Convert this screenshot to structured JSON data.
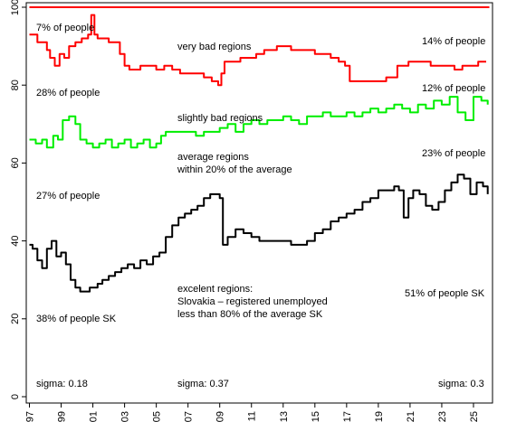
{
  "chart_data": {
    "type": "line",
    "title": "",
    "xlabel": "",
    "ylabel": "",
    "xlim": [
      1996.8,
      2026.2
    ],
    "ylim": [
      0,
      100
    ],
    "x_ticks": [
      {
        "value": 1997,
        "label": "97"
      },
      {
        "value": 1999,
        "label": "99"
      },
      {
        "value": 2001,
        "label": "01"
      },
      {
        "value": 2003,
        "label": "03"
      },
      {
        "value": 2005,
        "label": "05"
      },
      {
        "value": 2007,
        "label": "07"
      },
      {
        "value": 2009,
        "label": "09"
      },
      {
        "value": 2011,
        "label": "11"
      },
      {
        "value": 2013,
        "label": "13"
      },
      {
        "value": 2015,
        "label": "15"
      },
      {
        "value": 2017,
        "label": "17"
      },
      {
        "value": 2019,
        "label": "19"
      },
      {
        "value": 2021,
        "label": "21"
      },
      {
        "value": 2023,
        "label": "23"
      },
      {
        "value": 2025,
        "label": "25"
      }
    ],
    "y_ticks": [
      0,
      20,
      40,
      60,
      80,
      100
    ],
    "grid": false,
    "legend": "none",
    "series": [
      {
        "color": "#ff0000",
        "x": [
          1997,
          2026
        ],
        "y": [
          100,
          100
        ]
      },
      {
        "color": "#ff0000",
        "x": [
          1997,
          1997.5,
          1997.8,
          1998.1,
          1998.3,
          1998.6,
          1998.9,
          1999.2,
          1999.5,
          1999.9,
          2000.3,
          2000.7,
          2000.9,
          2001.1,
          2001.3,
          2001.7,
          2002.0,
          2002.4,
          2002.7,
          2003.0,
          2003.3,
          2003.7,
          2004.0,
          2004.5,
          2005.0,
          2005.5,
          2006.0,
          2006.5,
          2007.0,
          2007.5,
          2008.0,
          2008.5,
          2008.9,
          2009.1,
          2009.3,
          2009.8,
          2010.3,
          2010.8,
          2011.3,
          2011.8,
          2012.2,
          2012.6,
          2013.0,
          2013.5,
          2014.0,
          2014.5,
          2015.0,
          2015.5,
          2016.0,
          2016.5,
          2016.9,
          2017.2,
          2017.6,
          2018.2,
          2018.8,
          2019.5,
          2020.2,
          2020.6,
          2020.9,
          2021.3,
          2021.8,
          2022.3,
          2022.8,
          2023.3,
          2023.8,
          2024.3,
          2024.8,
          2025.3,
          2025.8
        ],
        "y": [
          93,
          91,
          91,
          89,
          87,
          85,
          88,
          87,
          90,
          91,
          92,
          93,
          98,
          93,
          92,
          92,
          91,
          91,
          88,
          85,
          84,
          84,
          85,
          85,
          84,
          85,
          84,
          83,
          83,
          83,
          82,
          81,
          80,
          83,
          86,
          86,
          87,
          87,
          88,
          89,
          89,
          90,
          90,
          89,
          89,
          89,
          88,
          88,
          87,
          86,
          85,
          81,
          81,
          81,
          81,
          82,
          85,
          85,
          86,
          86,
          86,
          85,
          85,
          85,
          84,
          85,
          85,
          86,
          86
        ]
      },
      {
        "color": "#00ee00",
        "x": [
          1997,
          1997.4,
          1997.8,
          1998.1,
          1998.5,
          1998.8,
          1999.1,
          1999.5,
          1999.9,
          2000.2,
          2000.6,
          2001.0,
          2001.4,
          2001.8,
          2002.2,
          2002.6,
          2003.0,
          2003.4,
          2003.8,
          2004.2,
          2004.6,
          2005.0,
          2005.3,
          2005.6,
          2006.0,
          2006.5,
          2007.0,
          2007.5,
          2008.0,
          2008.5,
          2009.0,
          2009.5,
          2010.0,
          2010.5,
          2011.0,
          2011.5,
          2012.0,
          2012.5,
          2013.0,
          2013.5,
          2014.0,
          2014.5,
          2015.0,
          2015.5,
          2016.0,
          2016.5,
          2017.0,
          2017.5,
          2018.0,
          2018.5,
          2019.0,
          2019.5,
          2020.0,
          2020.5,
          2021.0,
          2021.5,
          2022.0,
          2022.5,
          2023.0,
          2023.5,
          2024.0,
          2024.5,
          2025.0,
          2025.5,
          2025.9
        ],
        "y": [
          66,
          65,
          66,
          64,
          67,
          66,
          71,
          72,
          70,
          66,
          65,
          64,
          65,
          66,
          64,
          65,
          66,
          64,
          65,
          66,
          64,
          65,
          67,
          68,
          68,
          68,
          68,
          67,
          68,
          68,
          69,
          70,
          68,
          70,
          71,
          70,
          71,
          71,
          72,
          71,
          70,
          72,
          72,
          73,
          72,
          72,
          73,
          72,
          73,
          74,
          73,
          74,
          75,
          74,
          73,
          75,
          74,
          76,
          75,
          77,
          73,
          71,
          77,
          76,
          75
        ]
      },
      {
        "color": "#000000",
        "x": [
          1997,
          1997.2,
          1997.5,
          1997.8,
          1998.1,
          1998.4,
          1998.7,
          1999.0,
          1999.3,
          1999.6,
          1999.9,
          2000.2,
          2000.5,
          2000.8,
          2001.0,
          2001.3,
          2001.6,
          2002.0,
          2002.4,
          2002.8,
          2003.2,
          2003.6,
          2004.0,
          2004.4,
          2004.8,
          2005.2,
          2005.6,
          2006.0,
          2006.4,
          2006.8,
          2007.2,
          2007.6,
          2008.0,
          2008.4,
          2008.7,
          2009.0,
          2009.2,
          2009.5,
          2010.0,
          2010.5,
          2011.0,
          2011.5,
          2012.0,
          2012.5,
          2013.0,
          2013.5,
          2014.0,
          2014.5,
          2015.0,
          2015.5,
          2016.0,
          2016.5,
          2017.0,
          2017.5,
          2018.0,
          2018.5,
          2019.0,
          2019.5,
          2020.0,
          2020.3,
          2020.6,
          2020.9,
          2021.2,
          2021.6,
          2022.0,
          2022.4,
          2022.8,
          2023.2,
          2023.6,
          2024.0,
          2024.4,
          2024.8,
          2025.2,
          2025.6,
          2025.9
        ],
        "y": [
          39,
          38,
          35,
          33,
          38,
          40,
          36,
          37,
          34,
          30,
          28,
          27,
          27,
          28,
          28,
          29,
          30,
          31,
          32,
          33,
          34,
          33,
          35,
          34,
          36,
          37,
          41,
          44,
          46,
          47,
          48,
          49,
          51,
          52,
          52,
          51,
          39,
          41,
          43,
          42,
          41,
          40,
          40,
          40,
          40,
          39,
          39,
          40,
          42,
          43,
          45,
          46,
          47,
          48,
          50,
          51,
          53,
          53,
          54,
          53,
          46,
          51,
          53,
          52,
          49,
          48,
          50,
          53,
          55,
          57,
          56,
          52,
          55,
          54,
          52
        ]
      }
    ],
    "annotations": {
      "top_left": "7% of people",
      "top_right": "14% of people",
      "very_bad": "very bad regions",
      "left_28": "28% of people",
      "right_12": "12% of people",
      "slightly_bad": "slightly bad regions",
      "right_23": "23% of people",
      "average_1": "average regions",
      "average_2": "within 20% of the average",
      "left_27": "27% of people",
      "excellent_1": "excelent regions:",
      "excellent_2": "Slovakia – registered unemployed",
      "excellent_3": "less than 80% of the average SK",
      "right_51": "51% of people SK",
      "left_38": "38% of people SK",
      "sigma_1": "sigma: 0.18",
      "sigma_2": "sigma: 0.37",
      "sigma_3": "sigma: 0.3"
    }
  }
}
